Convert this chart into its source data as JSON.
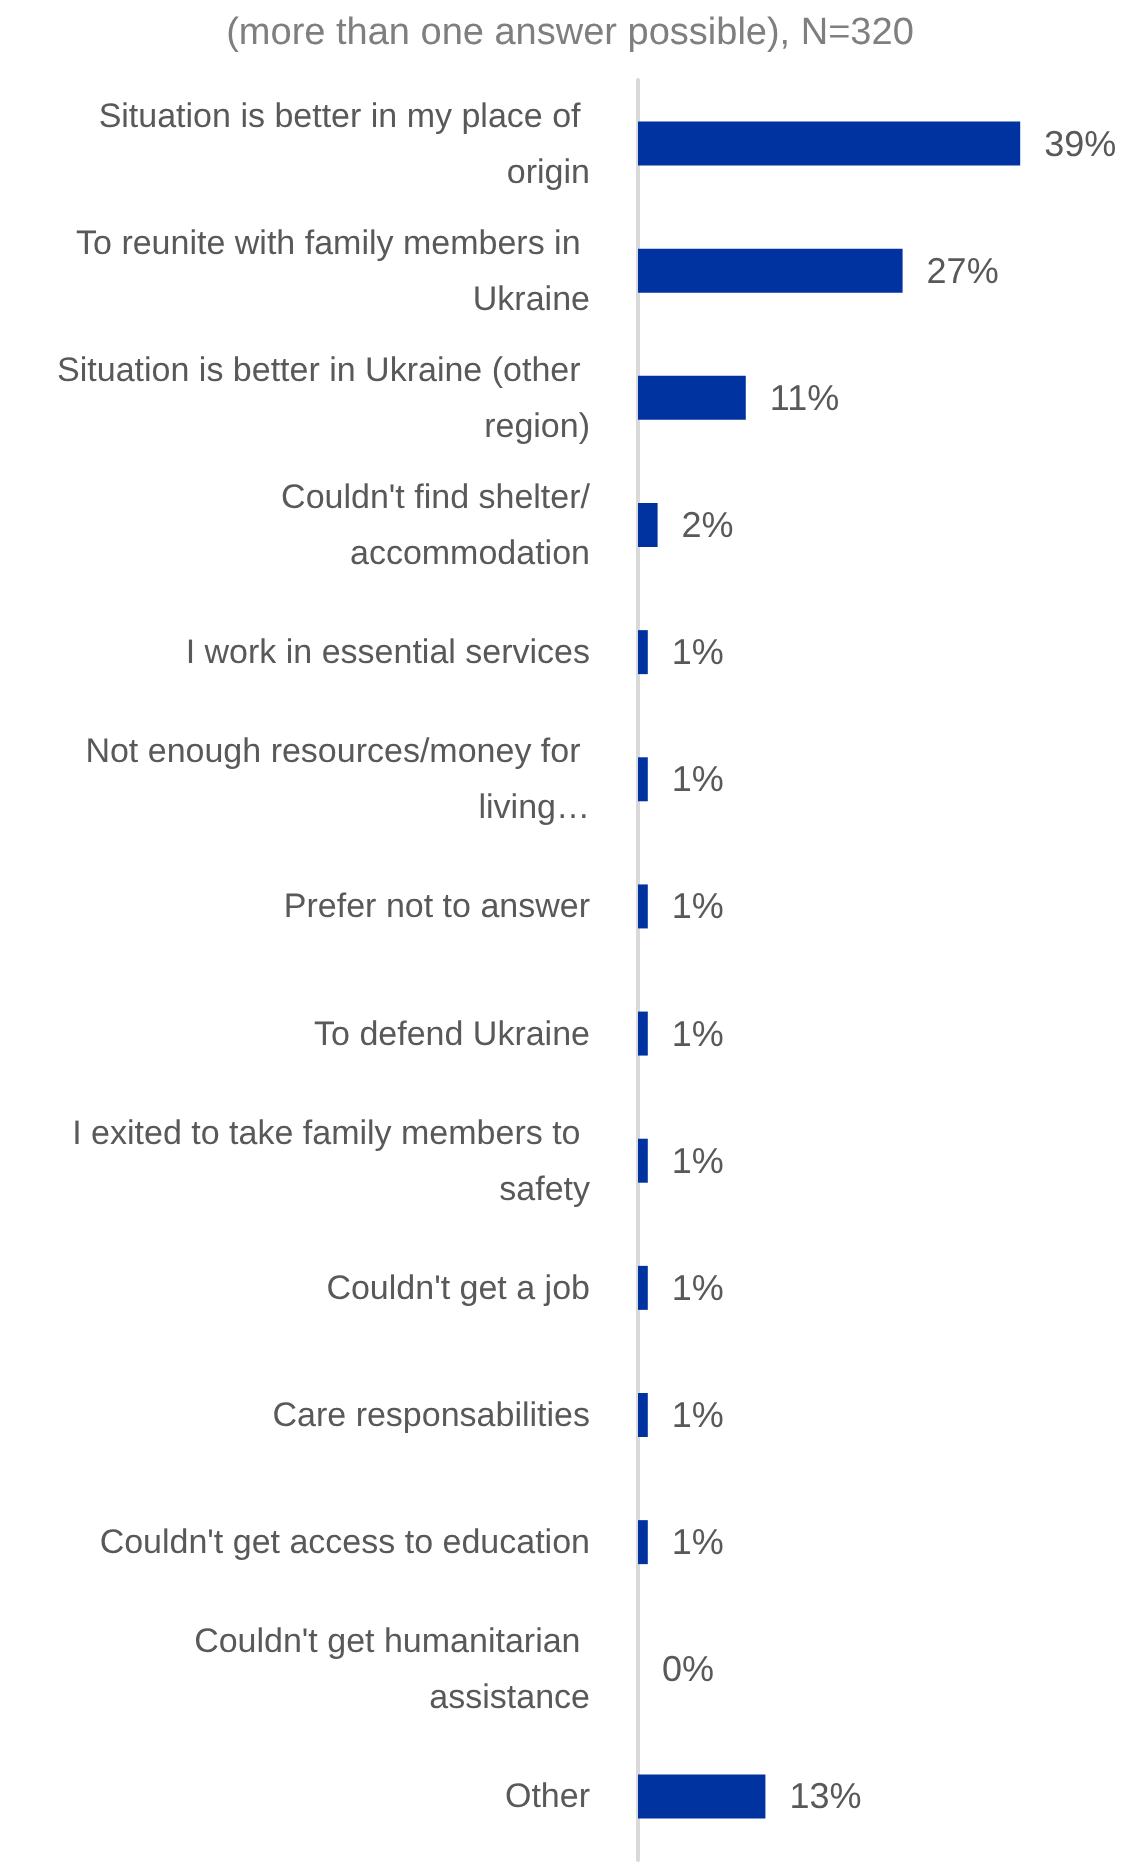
{
  "chart_data": {
    "type": "bar",
    "orientation": "horizontal",
    "subtitle": "(more than one answer possible), N=320",
    "categories": [
      "Situation is better in my place of origin",
      "To reunite with family members in Ukraine",
      "Situation is better in Ukraine (other region)",
      "Couldn't find shelter/accommodation",
      "I work in essential services",
      "Not enough resources/money for living…",
      "Prefer not to answer",
      "To defend Ukraine",
      "I exited to take family members to safety",
      "Couldn't get a job",
      "Care responsabilities",
      "Couldn't get access to education",
      "Couldn't get humanitarian assistance",
      "Other"
    ],
    "values": [
      39,
      27,
      11,
      2,
      1,
      1,
      1,
      1,
      1,
      1,
      1,
      1,
      0,
      13
    ],
    "value_labels": [
      "39%",
      "27%",
      "11%",
      "2%",
      "1%",
      "1%",
      "1%",
      "1%",
      "1%",
      "1%",
      "1%",
      "1%",
      "0%",
      "13%"
    ],
    "color": "#0033a0",
    "grid": false
  }
}
